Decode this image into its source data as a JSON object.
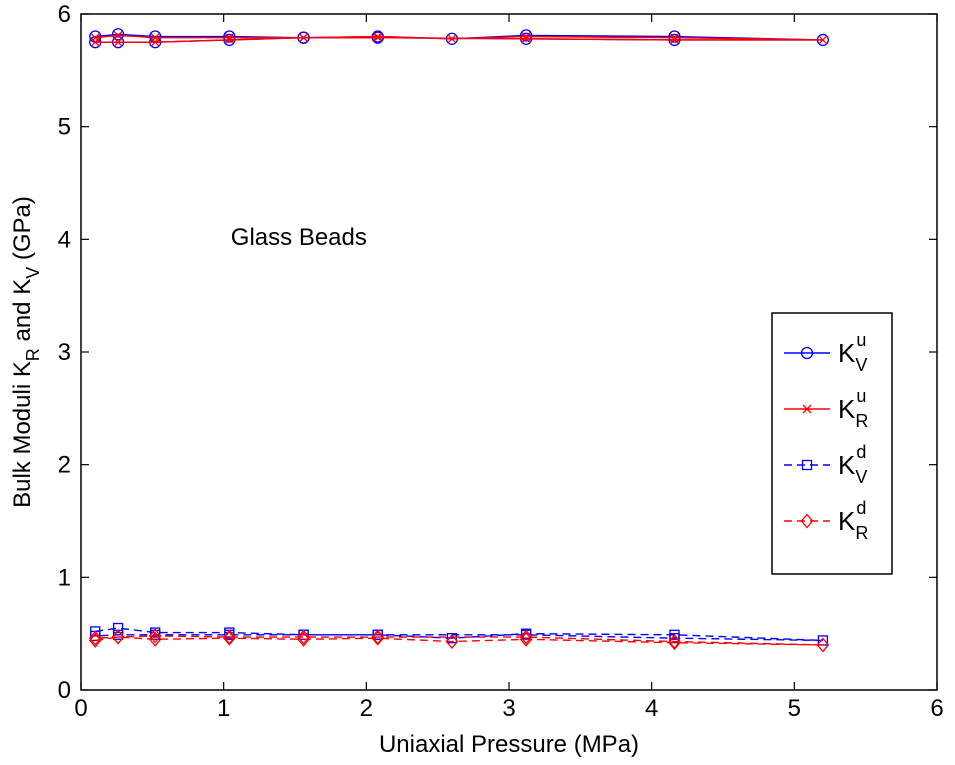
{
  "chart_data": {
    "type": "line",
    "xlabel": "Uniaxial Pressure (MPa)",
    "ylabel_parts": {
      "prefix": "Bulk Moduli K",
      "sub1": "R",
      "middle": " and K",
      "sub2": "V",
      "suffix": " (GPa)"
    },
    "xlim": [
      0,
      6
    ],
    "ylim": [
      0,
      6
    ],
    "xticks": [
      "0",
      "1",
      "2",
      "3",
      "4",
      "5",
      "6"
    ],
    "yticks": [
      "0",
      "1",
      "2",
      "3",
      "4",
      "5",
      "6"
    ],
    "annotation": {
      "text": "Glass Beads",
      "x": 1.05,
      "y": 3.95
    },
    "legend_location": "right",
    "series": [
      {
        "name": "K_V^u",
        "legend": {
          "base": "K",
          "sup": "u",
          "sub": "V"
        },
        "color": "#0000ff",
        "linestyle": "solid",
        "marker": "circle",
        "x": [
          0.1,
          0.26,
          0.52,
          1.04,
          1.56,
          2.08,
          2.6,
          3.12,
          4.16,
          5.2,
          4.16,
          3.12,
          2.08,
          1.56,
          1.04,
          0.52,
          0.26,
          0.1
        ],
        "y": [
          5.8,
          5.82,
          5.8,
          5.8,
          5.79,
          5.8,
          5.78,
          5.81,
          5.8,
          5.77,
          5.77,
          5.78,
          5.79,
          5.79,
          5.77,
          5.75,
          5.75,
          5.75
        ]
      },
      {
        "name": "K_R^u",
        "legend": {
          "base": "K",
          "sup": "u",
          "sub": "R"
        },
        "color": "#ff0000",
        "linestyle": "solid",
        "marker": "x",
        "x": [
          0.1,
          0.26,
          0.52,
          1.04,
          1.56,
          2.08,
          2.6,
          3.12,
          4.16,
          5.2,
          4.16,
          3.12,
          2.08,
          1.56,
          1.04,
          0.52,
          0.26,
          0.1
        ],
        "y": [
          5.79,
          5.81,
          5.79,
          5.79,
          5.79,
          5.8,
          5.78,
          5.8,
          5.79,
          5.77,
          5.77,
          5.78,
          5.79,
          5.79,
          5.77,
          5.75,
          5.75,
          5.75
        ]
      },
      {
        "name": "K_V^d",
        "legend": {
          "base": "K",
          "sup": "d",
          "sub": "V"
        },
        "color": "#0000ff",
        "linestyle": "dashed",
        "marker": "square",
        "x": [
          0.1,
          0.26,
          0.52,
          1.04,
          1.56,
          2.08,
          2.6,
          3.12,
          4.16,
          5.2,
          4.16,
          3.12,
          2.08,
          1.56,
          1.04,
          0.52,
          0.26,
          0.1
        ],
        "y": [
          0.52,
          0.55,
          0.51,
          0.51,
          0.49,
          0.49,
          0.46,
          0.5,
          0.49,
          0.44,
          0.46,
          0.49,
          0.49,
          0.49,
          0.49,
          0.49,
          0.49,
          0.48
        ]
      },
      {
        "name": "K_R^d",
        "legend": {
          "base": "K",
          "sup": "d",
          "sub": "R"
        },
        "color": "#ff0000",
        "linestyle": "dashed",
        "marker": "diamond",
        "x": [
          0.1,
          0.26,
          0.52,
          1.04,
          1.56,
          2.08,
          2.6,
          3.12,
          4.16,
          5.2,
          4.16,
          3.12,
          2.08,
          1.56,
          1.04,
          0.52,
          0.26,
          0.1
        ],
        "y": [
          0.44,
          0.47,
          0.45,
          0.46,
          0.45,
          0.46,
          0.43,
          0.45,
          0.42,
          0.4,
          0.43,
          0.47,
          0.47,
          0.47,
          0.47,
          0.48,
          0.47,
          0.46
        ]
      }
    ]
  }
}
